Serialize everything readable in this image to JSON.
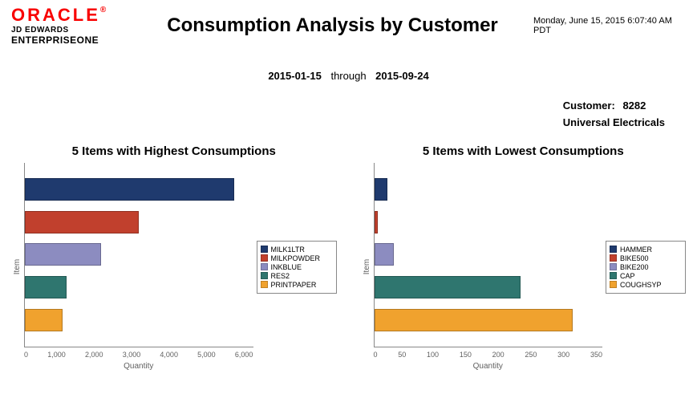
{
  "header": {
    "oracle": "ORACLE",
    "reg": "®",
    "jd": "JD EDWARDS",
    "eone": "ENTERPRISEONE",
    "title": "Consumption Analysis by Customer",
    "timestamp": "Monday, June 15, 2015 6:07:40 AM PDT"
  },
  "range": {
    "from": "2015-01-15",
    "through_label": "through",
    "to": "2015-09-24"
  },
  "customer": {
    "label": "Customer:",
    "id": "8282",
    "name": "Universal Electricals"
  },
  "axis": {
    "y_label": "Item",
    "x_label": "Quantity"
  },
  "chart_high": {
    "title": "5 Items with Highest Consumptions",
    "type": "horizontal-bar",
    "background_color": "#ffffff",
    "axis_color": "#888888",
    "xmin": 0,
    "xmax": 6000,
    "xticks": [
      "0",
      "1,000",
      "2,000",
      "3,000",
      "4,000",
      "5,000",
      "6,000"
    ],
    "bars": [
      {
        "label": "MILK1LTR",
        "value": 5500,
        "color": "#1f3a6e"
      },
      {
        "label": "MILKPOWDER",
        "value": 3000,
        "color": "#c1402d"
      },
      {
        "label": "INKBLUE",
        "value": 2000,
        "color": "#8c8cc0"
      },
      {
        "label": "RES2",
        "value": 1100,
        "color": "#2f766f"
      },
      {
        "label": "PRINTPAPER",
        "value": 1000,
        "color": "#f0a22e"
      }
    ]
  },
  "chart_low": {
    "title": "5 Items with Lowest Consumptions",
    "type": "horizontal-bar",
    "background_color": "#ffffff",
    "axis_color": "#888888",
    "xmin": 0,
    "xmax": 350,
    "xticks": [
      "0",
      "50",
      "100",
      "150",
      "200",
      "250",
      "300",
      "350"
    ],
    "bars": [
      {
        "label": "HAMMER",
        "value": 20,
        "color": "#1f3a6e"
      },
      {
        "label": "BIKE500",
        "value": 5,
        "color": "#c1402d"
      },
      {
        "label": "BIKE200",
        "value": 30,
        "color": "#8c8cc0"
      },
      {
        "label": "CAP",
        "value": 225,
        "color": "#2f766f"
      },
      {
        "label": "COUGHSYP",
        "value": 305,
        "color": "#f0a22e"
      }
    ]
  }
}
